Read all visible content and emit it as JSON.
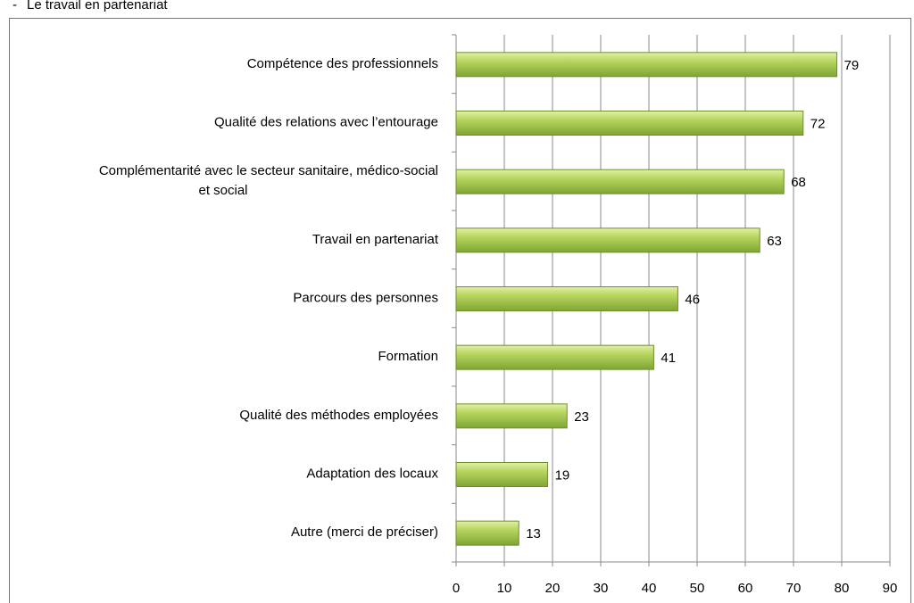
{
  "heading": "Le travail en partenariat",
  "chart_data": {
    "type": "bar",
    "orientation": "horizontal",
    "categories": [
      "Compétence des professionnels",
      "Qualité des relations avec l’entourage",
      [
        "Complémentarité avec le secteur sanitaire, médico-social",
        "et social"
      ],
      "Travail en partenariat",
      "Parcours des personnes",
      "Formation",
      "Qualité des méthodes employées",
      "Adaptation des locaux",
      "Autre (merci de préciser)"
    ],
    "values": [
      79,
      72,
      68,
      63,
      46,
      41,
      23,
      19,
      13
    ],
    "color": "#9dc345",
    "xlim": [
      0,
      90
    ],
    "xticks": [
      0,
      10,
      20,
      30,
      40,
      50,
      60,
      70,
      80,
      90
    ],
    "grid": true
  }
}
